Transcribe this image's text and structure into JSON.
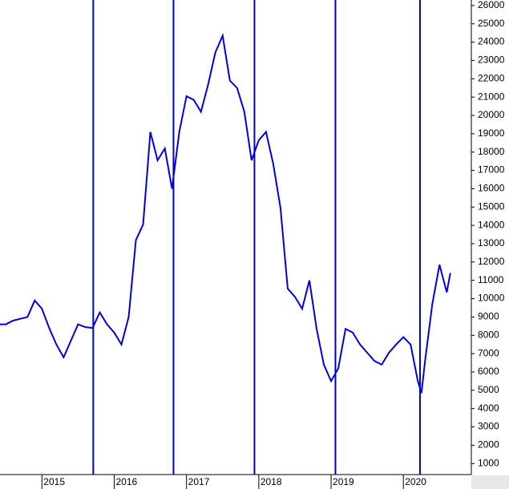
{
  "chart_data": {
    "type": "line",
    "x": [
      2014.42,
      2014.5,
      2014.6,
      2014.7,
      2014.8,
      2014.9,
      2015.0,
      2015.1,
      2015.2,
      2015.3,
      2015.4,
      2015.5,
      2015.6,
      2015.7,
      2015.8,
      2015.9,
      2016.0,
      2016.1,
      2016.2,
      2016.3,
      2016.4,
      2016.5,
      2016.6,
      2016.7,
      2016.8,
      2016.9,
      2017.0,
      2017.1,
      2017.2,
      2017.3,
      2017.4,
      2017.5,
      2017.6,
      2017.7,
      2017.8,
      2017.9,
      2018.0,
      2018.1,
      2018.2,
      2018.3,
      2018.4,
      2018.5,
      2018.6,
      2018.7,
      2018.8,
      2018.9,
      2019.0,
      2019.1,
      2019.2,
      2019.3,
      2019.4,
      2019.5,
      2019.6,
      2019.7,
      2019.8,
      2019.9,
      2020.0,
      2020.1,
      2020.2,
      2020.25,
      2020.3,
      2020.4,
      2020.5,
      2020.6,
      2020.65
    ],
    "series": [
      {
        "color": "#0000e0",
        "values": [
          8600,
          8600,
          8800,
          8900,
          9000,
          9900,
          9450,
          8400,
          7500,
          6800,
          7700,
          8600,
          8450,
          8400,
          9250,
          8600,
          8150,
          7500,
          9000,
          13200,
          14050,
          19100,
          17550,
          18200,
          16000,
          19100,
          21050,
          20850,
          20200,
          21700,
          23450,
          24350,
          21900,
          21500,
          20200,
          17550,
          18650,
          19100,
          17350,
          14950,
          10550,
          10100,
          9450,
          11000,
          8350,
          6400,
          5500,
          6200,
          8350,
          8150,
          7500,
          7050,
          6600,
          6400,
          7050,
          7500,
          7900,
          7500,
          5500,
          4850,
          6600,
          9700,
          11850,
          10350,
          11400
        ]
      }
    ],
    "xlim": [
      2014.42,
      2020.94
    ],
    "xticks": [
      2015,
      2016,
      2017,
      2018,
      2019,
      2020
    ],
    "ylim": [
      400,
      26300
    ],
    "yticks": [
      1000,
      2000,
      3000,
      4000,
      5000,
      6000,
      7000,
      8000,
      9000,
      10000,
      11000,
      12000,
      13000,
      14000,
      15000,
      16000,
      17000,
      18000,
      19000,
      20000,
      21000,
      22000,
      23000,
      24000,
      25000,
      26000
    ],
    "vlines": [
      2015.71,
      2016.82,
      2017.94,
      2019.06,
      2020.23
    ],
    "vline_color": "#0000cc"
  }
}
